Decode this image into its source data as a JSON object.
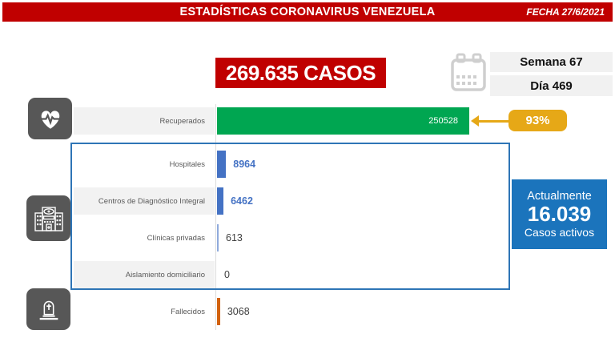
{
  "banner": {
    "title": "ESTADÍSTICAS CORONAVIRUS VENEZUELA",
    "date_label": "FECHA 27/6/2021"
  },
  "summary": {
    "total_cases": "269.635 CASOS",
    "week": "Semana 67",
    "day": "Día 469"
  },
  "recovered_callout": {
    "percent": "93%"
  },
  "active_box": {
    "line1": "Actualmente",
    "value": "16.039",
    "line2": "Casos activos"
  },
  "icons": {
    "calendar": "calendar-icon",
    "recovered": "heart-pulse-icon",
    "medical": "hospital-icon",
    "deaths": "tombstone-icon"
  },
  "colors": {
    "brand_red": "#C00000",
    "green": "#00A651",
    "yellow": "#E6A817",
    "bar_blue": "#4472C4",
    "bar_blue_light": "#8FAADC",
    "orange": "#D2620E",
    "active_blue": "#1B74BC",
    "box_border_blue": "#2E75B6",
    "icon_gray": "#575757",
    "label_bg": "#F2F2F2"
  },
  "chart_data": {
    "type": "bar",
    "orientation": "horizontal",
    "title": "269.635 CASOS",
    "xlabel": "",
    "ylabel": "",
    "xlim": [
      0,
      268000
    ],
    "grid": false,
    "categories": [
      "Recuperados",
      "Hospitales",
      "Centros de Diagnóstico Integral",
      "Clínicas privadas",
      "Aislamiento domiciliario",
      "Fallecidos"
    ],
    "values": [
      250528,
      8964,
      6462,
      613,
      0,
      3068
    ],
    "annotations": [
      {
        "target": "Recuperados",
        "text": "93%"
      }
    ],
    "rows": [
      {
        "label": "Recuperados",
        "value": 250528,
        "display": "250528",
        "bar_color": "#00A651",
        "value_inside": true,
        "value_color": "#FFFFFF",
        "label_bg": "#F2F2F2"
      },
      {
        "label": "Hospitales",
        "value": 8964,
        "display": "8964",
        "bar_color": "#4472C4",
        "value_inside": false,
        "value_color": "#4472C4",
        "label_bg": "#FFFFFF"
      },
      {
        "label": "Centros de Diagnóstico Integral",
        "value": 6462,
        "display": "6462",
        "bar_color": "#4472C4",
        "value_inside": false,
        "value_color": "#4472C4",
        "label_bg": "#F2F2F2"
      },
      {
        "label": "Clínicas privadas",
        "value": 613,
        "display": "613",
        "bar_color": "#8FAADC",
        "value_inside": false,
        "value_color": "#3F3F3F",
        "label_bg": "#FFFFFF"
      },
      {
        "label": "Aislamiento domiciliario",
        "value": 0,
        "display": "0",
        "bar_color": "#4472C4",
        "value_inside": false,
        "value_color": "#3F3F3F",
        "label_bg": "#F2F2F2"
      },
      {
        "label": "Fallecidos",
        "value": 3068,
        "display": "3068",
        "bar_color": "#D2620E",
        "value_inside": false,
        "value_color": "#3F3F3F",
        "label_bg": "#FFFFFF"
      }
    ]
  }
}
